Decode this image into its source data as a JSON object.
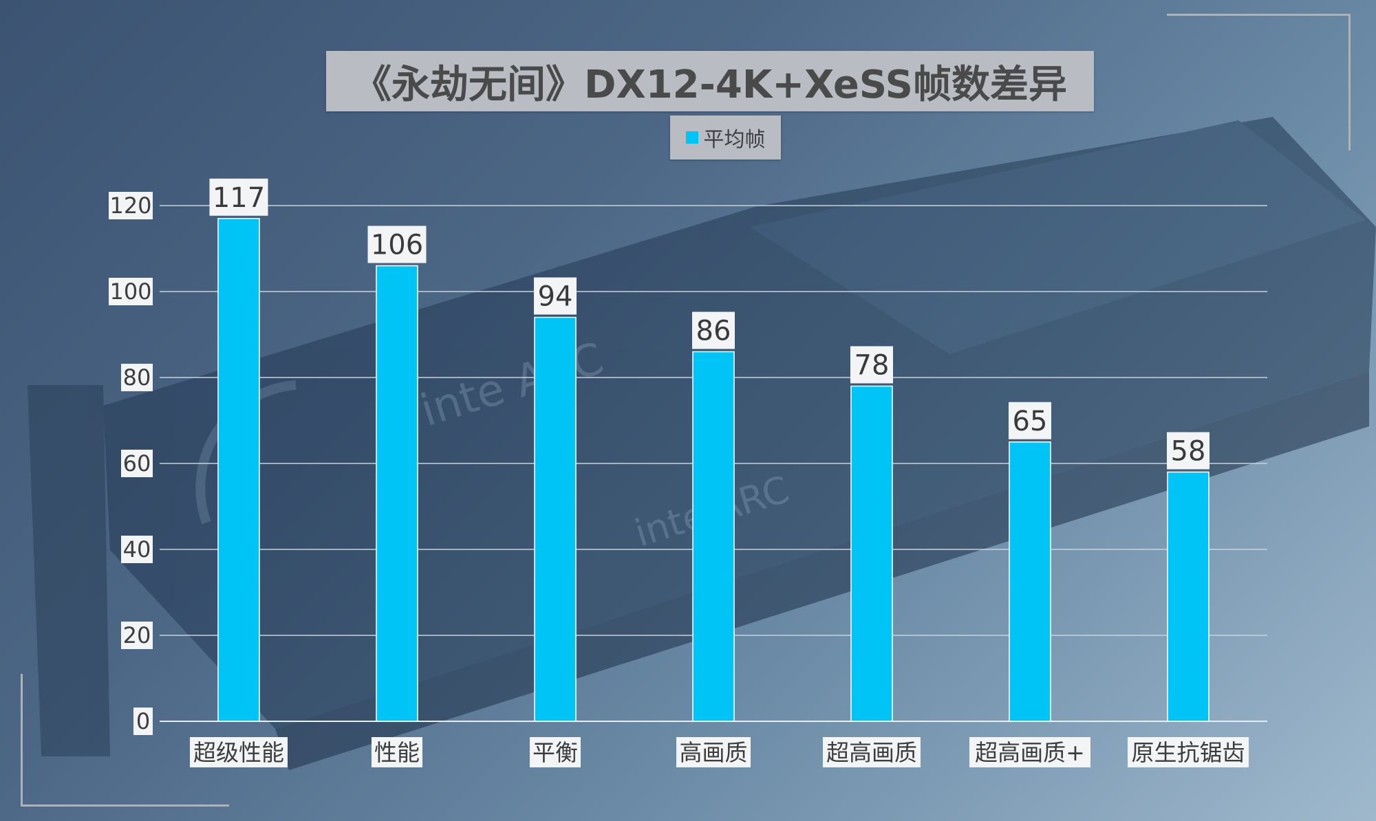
{
  "chart_data": {
    "type": "bar",
    "title": "《永劫无间》DX12-4K+XeSS帧数差异",
    "xlabel": "",
    "ylabel": "",
    "ylim": [
      0,
      120
    ],
    "yticks": [
      0,
      20,
      40,
      60,
      80,
      100,
      120
    ],
    "grid": true,
    "legend_position": "top-center",
    "categories": [
      "超级性能",
      "性能",
      "平衡",
      "高画质",
      "超高画质",
      "超高画质+",
      "原生抗锯齿"
    ],
    "series": [
      {
        "name": "平均帧",
        "values": [
          117,
          106,
          94,
          86,
          78,
          65,
          58
        ],
        "color": "#00c4f5"
      }
    ]
  }
}
